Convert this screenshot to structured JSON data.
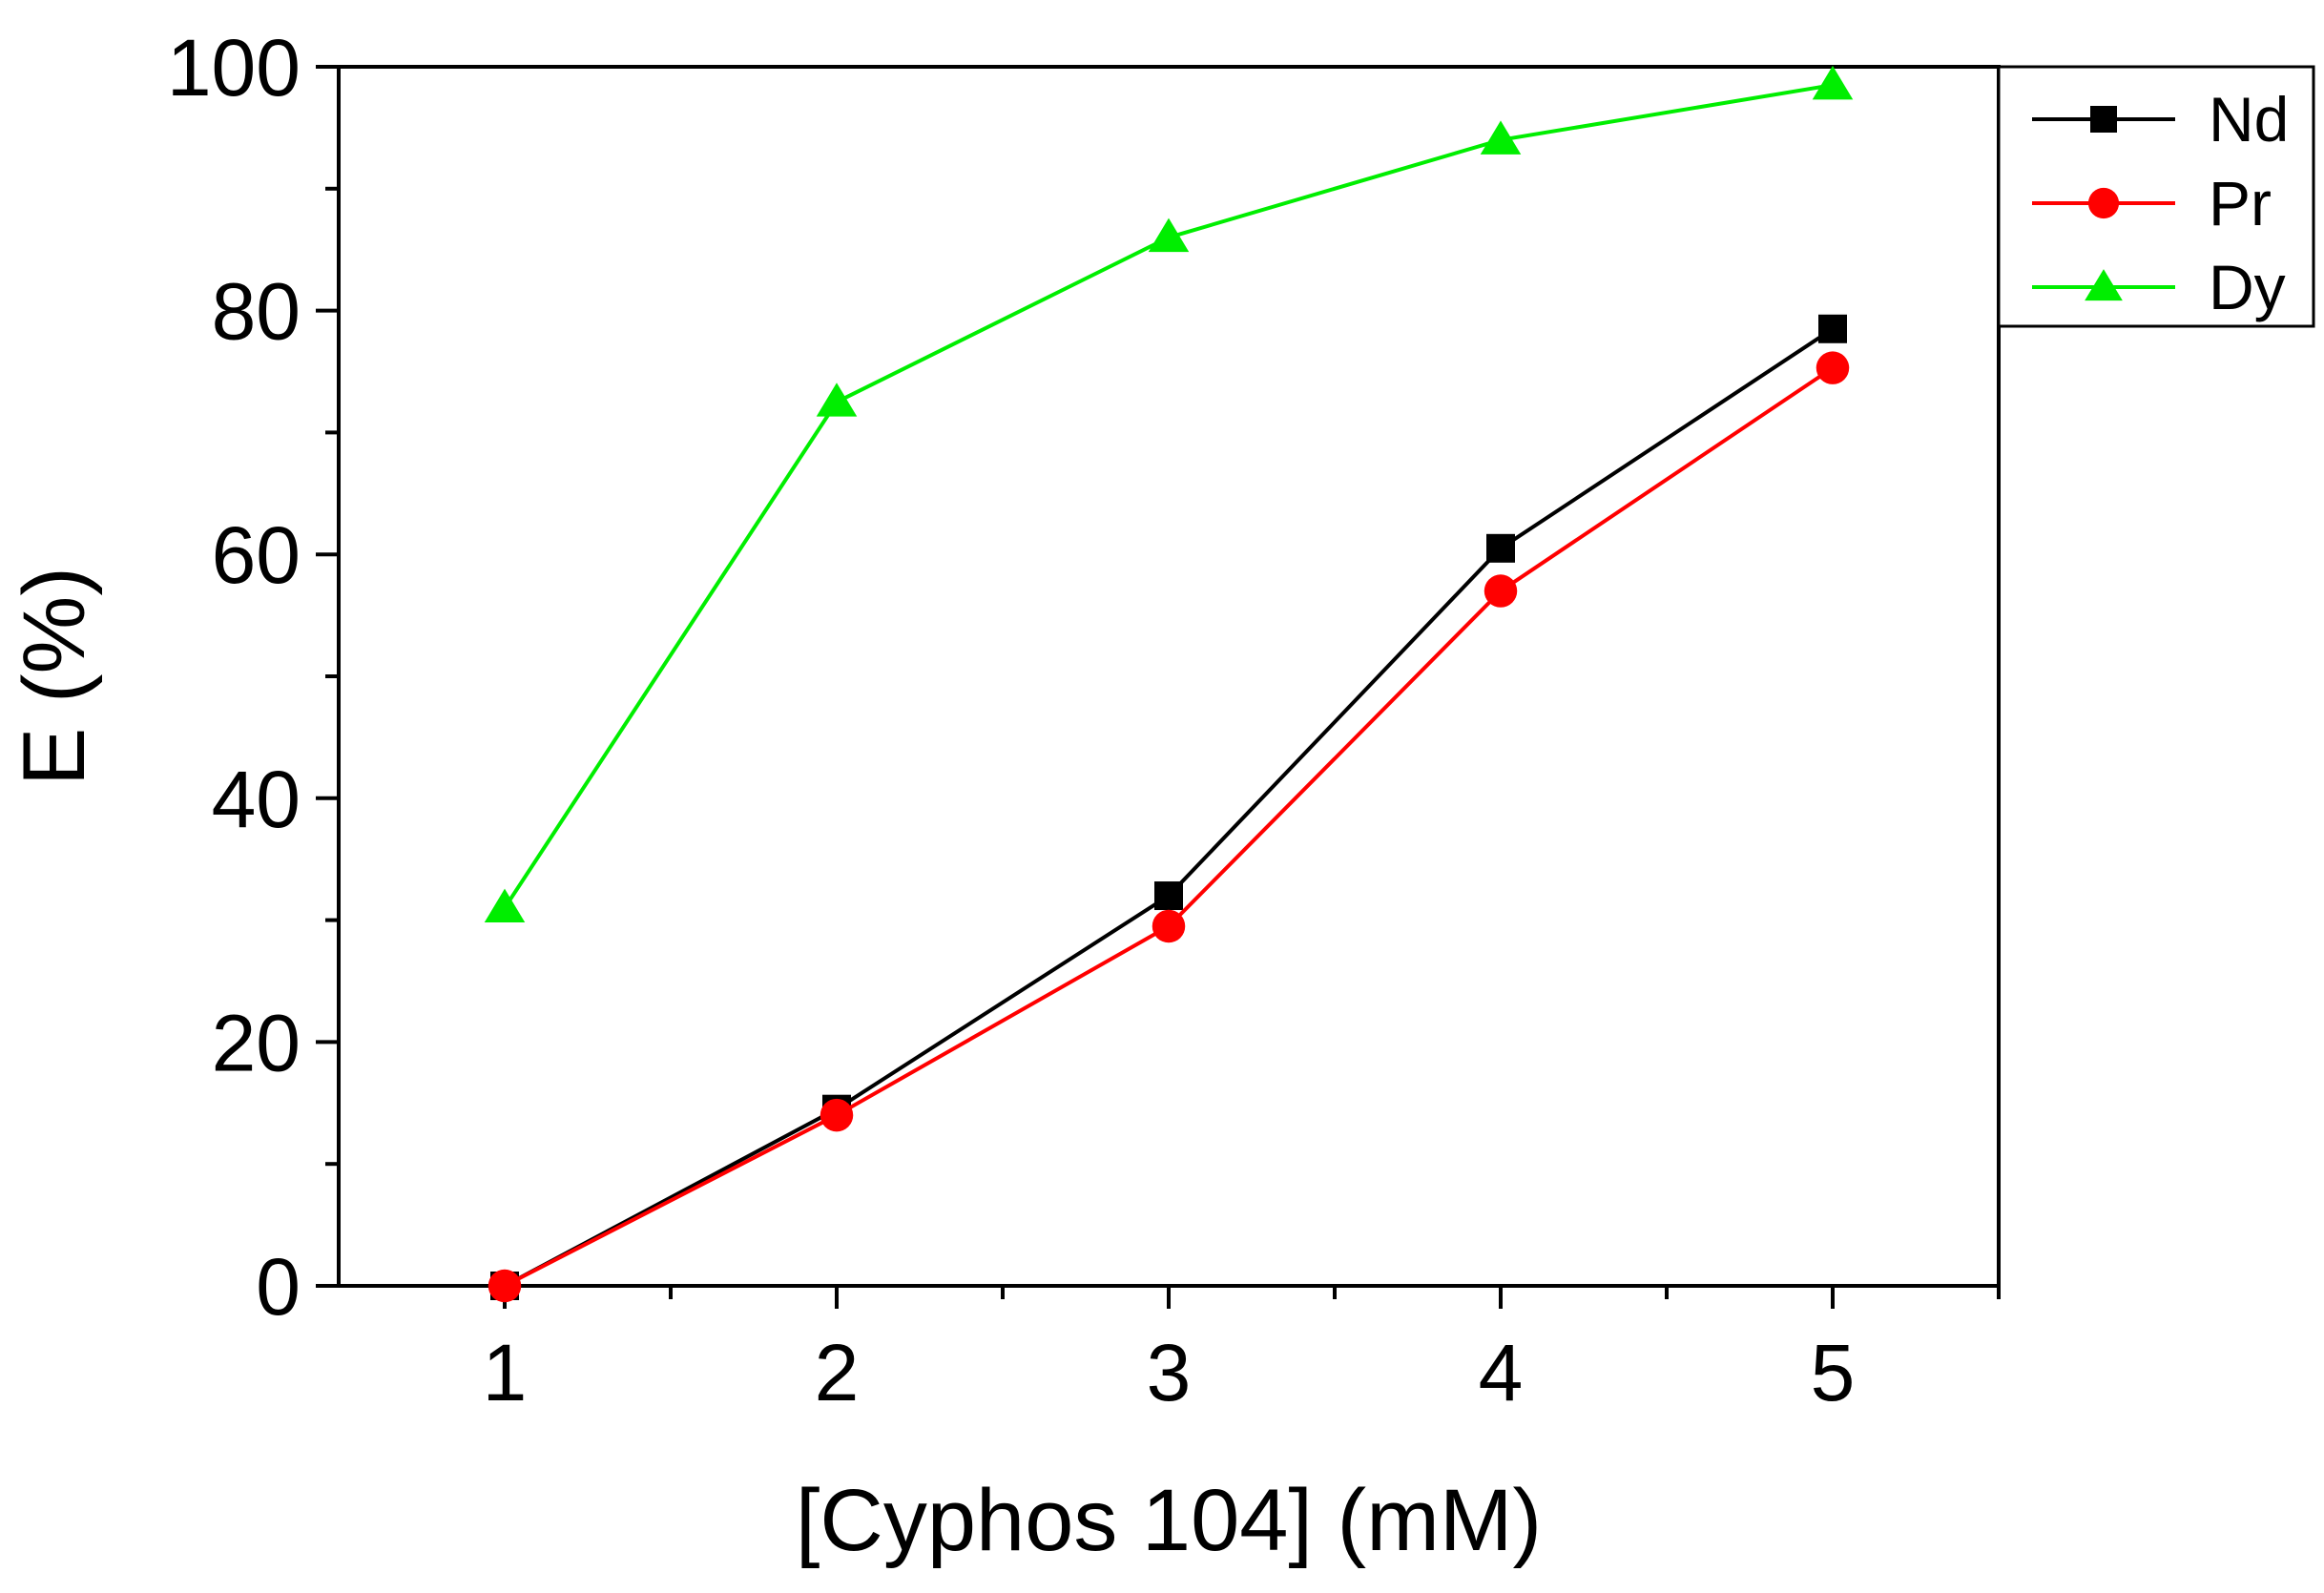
{
  "chart_data": {
    "type": "line",
    "title": "",
    "xlabel": "[Cyphos 104] (mM)",
    "ylabel": "E (%)",
    "xlim": [
      0.5,
      5.5
    ],
    "ylim": [
      0,
      100
    ],
    "x": [
      1,
      2,
      3,
      4,
      5
    ],
    "xticks": [
      "1",
      "2",
      "3",
      "4",
      "5"
    ],
    "yticks": [
      "0",
      "20",
      "40",
      "60",
      "80",
      "100"
    ],
    "grid": false,
    "legend_position": "top-right, outside plot frame",
    "series": [
      {
        "name": "Nd",
        "color": "#000000",
        "marker": "square",
        "values": [
          0,
          14.5,
          32,
          60.5,
          78.5
        ]
      },
      {
        "name": "Pr",
        "color": "#ff0000",
        "marker": "circle",
        "values": [
          0,
          14,
          29.5,
          57,
          75.3
        ]
      },
      {
        "name": "Dy",
        "color": "#00ee00",
        "marker": "triangle",
        "values": [
          31,
          72.5,
          86,
          94,
          98.5
        ]
      }
    ]
  }
}
